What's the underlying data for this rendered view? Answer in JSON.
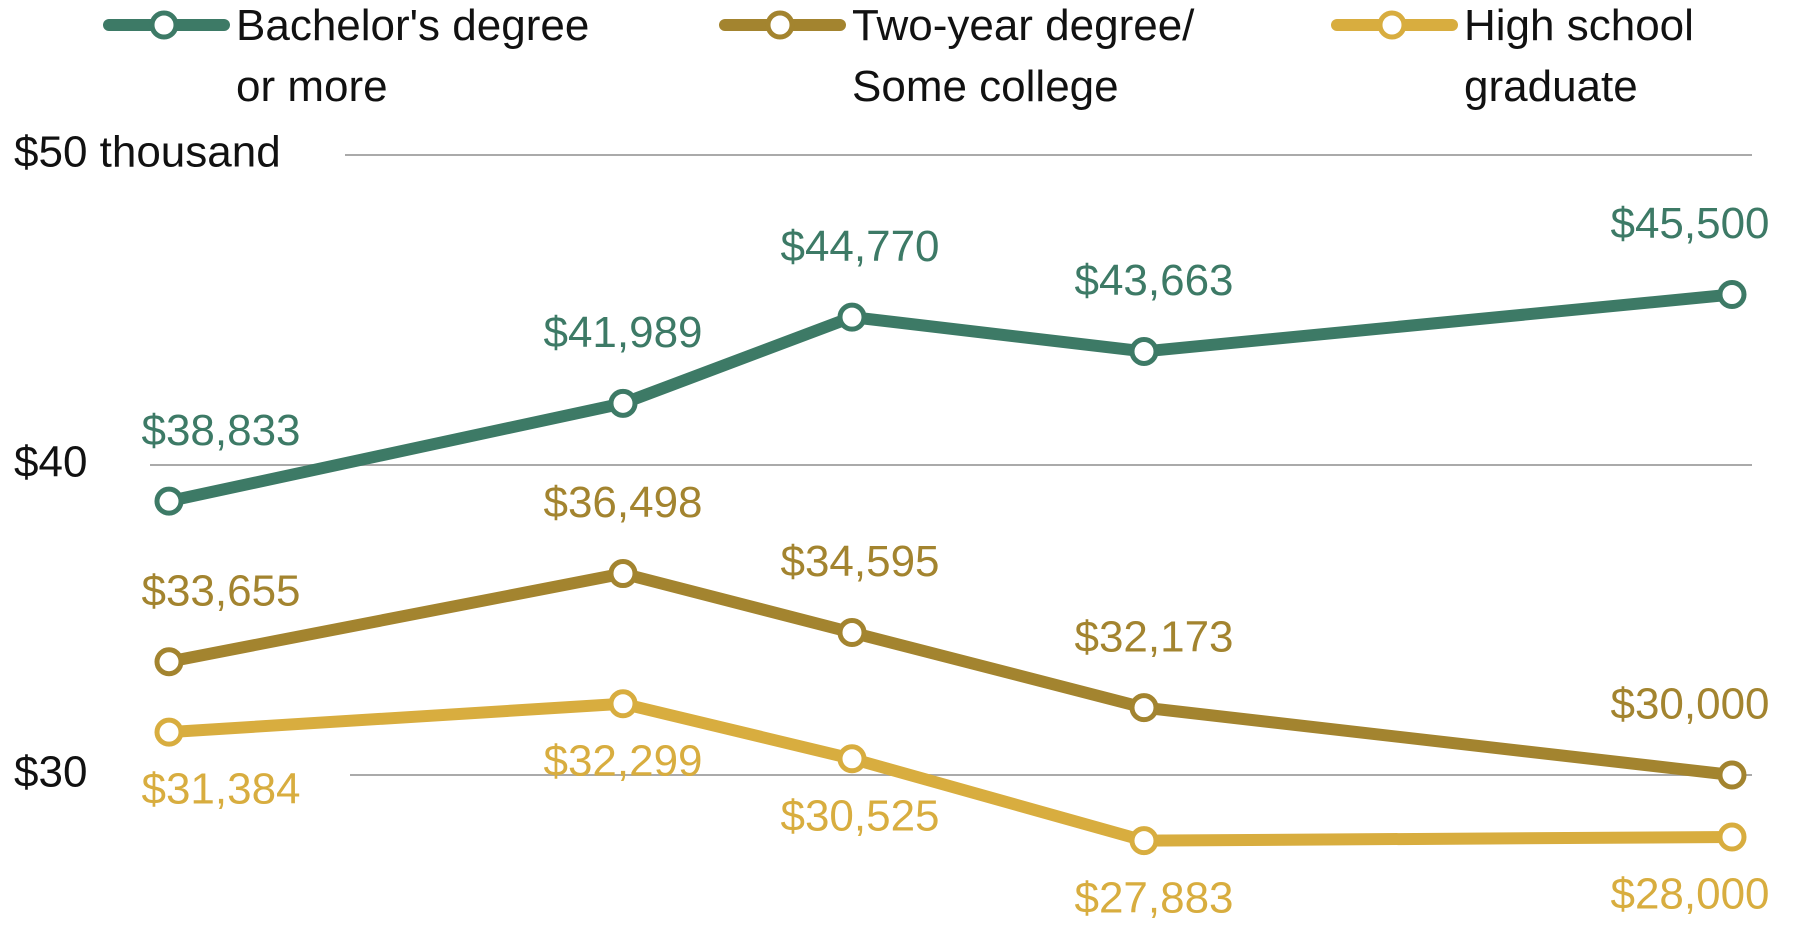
{
  "chart_data": {
    "type": "line",
    "categories": [
      null,
      null,
      null,
      null,
      null
    ],
    "ylim": [
      26,
      50
    ],
    "yticks": [
      {
        "value": 50,
        "label": "$50 thousand"
      },
      {
        "value": 40,
        "label": "$40"
      },
      {
        "value": 30,
        "label": "$30"
      }
    ],
    "grid": true,
    "legend": "top",
    "series": [
      {
        "name": "Bachelor's degree or more",
        "color": "#3d7a66",
        "values": [
          38.833,
          41.989,
          44.77,
          43.663,
          45.5
        ],
        "value_labels": [
          "$38,833",
          "$41,989",
          "$44,770",
          "$43,663",
          "$45,500"
        ]
      },
      {
        "name": "Two-year degree/ Some college",
        "color": "#a3842f",
        "values": [
          33.655,
          36.498,
          34.595,
          32.173,
          30.0
        ],
        "value_labels": [
          "$33,655",
          "$36,498",
          "$34,595",
          "$32,173",
          "$30,000"
        ]
      },
      {
        "name": "High school graduate",
        "color": "#d8ad3f",
        "values": [
          31.384,
          32.299,
          30.525,
          27.883,
          28.0
        ],
        "value_labels": [
          "$31,384",
          "$32,299",
          "$30,525",
          "$27,883",
          "$28,000"
        ]
      }
    ]
  }
}
